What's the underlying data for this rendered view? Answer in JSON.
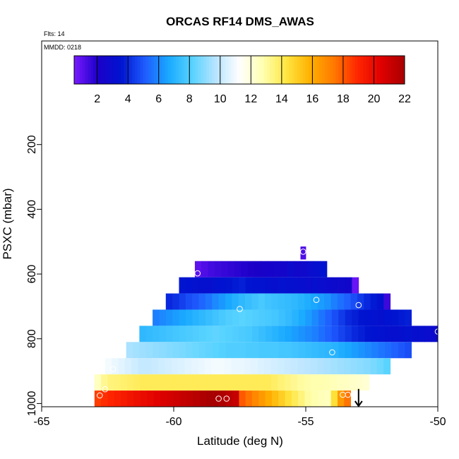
{
  "chart_data": {
    "type": "heatmap",
    "title": "ORCAS RF14 DMS_AWAS",
    "subtitle_flts": "Flts: 14",
    "subtitle_mmdd": "MMDD: 0218",
    "xlabel": "Latitude (deg N)",
    "ylabel": "PSXC (mbar)",
    "xlim": [
      -65,
      -50
    ],
    "ylim": [
      1010,
      -120
    ],
    "x_ticks": [
      {
        "value": -65,
        "label": "-65"
      },
      {
        "value": -60,
        "label": "-60"
      },
      {
        "value": -55,
        "label": "-55"
      },
      {
        "value": -50,
        "label": "-50"
      }
    ],
    "y_ticks": [
      {
        "value": 200,
        "label": "200"
      },
      {
        "value": 400,
        "label": "400"
      },
      {
        "value": 600,
        "label": "600"
      },
      {
        "value": 800,
        "label": "800"
      },
      {
        "value": 1000,
        "label": "1000"
      }
    ],
    "colorbar": {
      "min": 0.5,
      "max": 22,
      "ticks": [
        {
          "value": 2,
          "label": "2"
        },
        {
          "value": 4,
          "label": "4"
        },
        {
          "value": 6,
          "label": "6"
        },
        {
          "value": 8,
          "label": "8"
        },
        {
          "value": 10,
          "label": "10"
        },
        {
          "value": 12,
          "label": "12"
        },
        {
          "value": 14,
          "label": "14"
        },
        {
          "value": 16,
          "label": "16"
        },
        {
          "value": 18,
          "label": "18"
        },
        {
          "value": 20,
          "label": "20"
        },
        {
          "value": 22,
          "label": "22"
        }
      ],
      "palette": [
        "#7a1aff",
        "#1b00c8",
        "#0014d0",
        "#1f5cff",
        "#19a9ff",
        "#58d3ff",
        "#b8e4ff",
        "#ffffff",
        "#ffffb0",
        "#ffe640",
        "#ffb000",
        "#ff7a00",
        "#ff2600",
        "#e00000",
        "#a80000"
      ]
    },
    "bands": [
      {
        "p_top": 515,
        "p_bot": 555,
        "lat_start": -55.2,
        "lat_end": -55.0,
        "values": [
          1.2
        ]
      },
      {
        "p_top": 560,
        "p_bot": 610,
        "lat_start": -59.2,
        "lat_end": -54.2,
        "values": [
          1.0,
          1.2,
          1.4,
          1.5,
          1.6,
          1.7,
          1.8,
          1.9,
          2.0,
          2.1,
          2.2,
          2.3,
          2.4,
          2.5,
          2.8,
          2.6,
          2.7,
          3.0,
          3.2,
          3.5
        ]
      },
      {
        "p_top": 610,
        "p_bot": 660,
        "lat_start": -59.8,
        "lat_end": -53.0,
        "values": [
          3.6,
          3.5,
          3.4,
          3.3,
          3.2,
          3.4,
          3.5,
          3.6,
          3.7,
          3.8,
          3.6,
          3.5,
          3.4,
          3.3,
          3.2,
          3.4,
          3.3,
          3.2,
          3.1,
          3.0,
          3.2,
          3.0,
          2.9,
          2.8,
          2.7,
          2.6,
          0.8
        ]
      },
      {
        "p_top": 660,
        "p_bot": 710,
        "lat_start": -60.3,
        "lat_end": -51.8,
        "values": [
          4.0,
          4.2,
          4.5,
          4.8,
          5.0,
          5.3,
          5.6,
          6.0,
          6.3,
          6.6,
          6.9,
          7.2,
          7.4,
          7.6,
          7.8,
          7.6,
          7.5,
          7.4,
          7.3,
          7.2,
          7.0,
          6.8,
          6.6,
          6.4,
          6.2,
          5.8,
          5.5,
          5.2,
          4.8,
          4.4,
          4.0,
          3.7,
          3.4,
          1.5
        ]
      },
      {
        "p_top": 710,
        "p_bot": 760,
        "lat_start": -60.8,
        "lat_end": -51.0,
        "values": [
          5.8,
          6.0,
          6.2,
          6.4,
          6.6,
          6.8,
          7.0,
          7.2,
          7.4,
          7.6,
          7.8,
          8.0,
          8.1,
          8.2,
          8.1,
          8.0,
          7.9,
          7.8,
          7.7,
          7.5,
          7.3,
          7.0,
          6.7,
          6.4,
          6.0,
          5.6,
          5.2,
          4.8,
          4.4,
          4.0,
          3.8,
          3.6,
          3.5,
          3.4,
          3.3,
          3.5,
          3.6,
          3.7,
          3.8
        ]
      },
      {
        "p_top": 760,
        "p_bot": 810,
        "lat_start": -61.3,
        "lat_end": -50.0,
        "values": [
          7.2,
          7.3,
          7.4,
          7.5,
          7.6,
          7.7,
          7.8,
          7.9,
          8.0,
          8.1,
          8.2,
          8.3,
          8.2,
          8.1,
          8.0,
          7.9,
          7.8,
          7.6,
          7.4,
          7.2,
          7.0,
          6.8,
          6.6,
          6.4,
          6.2,
          6.0,
          5.8,
          5.5,
          5.2,
          4.9,
          4.6,
          4.3,
          4.0,
          3.8,
          3.6,
          3.5,
          3.4,
          3.3,
          3.2,
          3.3,
          3.4,
          3.2,
          3.1,
          3.0,
          2.9
        ]
      },
      {
        "p_top": 810,
        "p_bot": 860,
        "lat_start": -61.8,
        "lat_end": -51.0,
        "values": [
          9.5,
          9.4,
          9.3,
          9.2,
          9.1,
          9.0,
          8.9,
          8.8,
          8.7,
          8.6,
          8.5,
          8.4,
          8.3,
          8.2,
          8.1,
          8.0,
          8.0,
          8.0,
          7.9,
          7.9,
          7.8,
          7.8,
          7.8,
          7.7,
          7.7,
          7.6,
          7.5,
          7.4,
          7.3,
          7.2,
          7.1,
          7.0,
          6.8,
          6.6,
          6.4,
          6.2,
          6.0,
          5.8,
          5.6,
          5.4,
          5.2,
          5.0,
          4.8
        ]
      },
      {
        "p_top": 860,
        "p_bot": 910,
        "lat_start": -62.6,
        "lat_end": -51.8,
        "values": [
          11.0,
          10.8,
          10.6,
          10.4,
          10.2,
          10.0,
          10.0,
          10.1,
          10.2,
          10.3,
          10.4,
          10.5,
          10.6,
          10.7,
          10.8,
          10.9,
          11.0,
          11.0,
          10.9,
          10.8,
          10.8,
          10.7,
          10.6,
          10.5,
          10.4,
          10.3,
          10.2,
          10.1,
          10.0,
          9.9,
          9.8,
          9.7,
          9.6,
          9.5,
          9.4,
          9.3,
          9.2,
          9.1,
          9.0,
          8.9,
          8.7,
          8.5,
          8.2
        ]
      },
      {
        "p_top": 910,
        "p_bot": 960,
        "lat_start": -63.0,
        "lat_end": -52.6,
        "values": [
          12.5,
          13.2,
          13.5,
          13.6,
          13.7,
          13.8,
          13.9,
          14.0,
          14.0,
          14.0,
          14.0,
          14.0,
          14.0,
          14.0,
          14.0,
          14.0,
          14.0,
          14.0,
          14.0,
          14.0,
          14.0,
          14.0,
          14.0,
          14.0,
          14.0,
          14.0,
          14.0,
          13.8,
          13.6,
          13.4,
          13.2,
          13.0,
          12.9,
          12.8,
          12.8,
          12.7,
          12.6,
          12.5,
          12.4,
          12.3,
          12.2,
          12.1
        ]
      },
      {
        "p_top": 960,
        "p_bot": 1010,
        "lat_start": -63.0,
        "lat_end": -53.3,
        "values": [
          18.5,
          18.8,
          19.0,
          19.2,
          19.4,
          19.6,
          19.8,
          20.0,
          20.2,
          20.4,
          20.6,
          20.8,
          21.0,
          21.2,
          21.4,
          21.6,
          21.8,
          22.0,
          22.0,
          21.8,
          21.5,
          21.2,
          18.0,
          17.5,
          17.0,
          16.5,
          16.0,
          15.5,
          15.0,
          14.5,
          14.0,
          13.5,
          13.0,
          12.8,
          12.6,
          12.5,
          14.5,
          16.5,
          17.5
        ]
      }
    ],
    "samples": [
      {
        "lat": -55.1,
        "p": 531
      },
      {
        "lat": -59.1,
        "p": 598
      },
      {
        "lat": -54.6,
        "p": 680
      },
      {
        "lat": -53.0,
        "p": 696
      },
      {
        "lat": -57.5,
        "p": 708
      },
      {
        "lat": -50.0,
        "p": 778
      },
      {
        "lat": -54.0,
        "p": 842
      },
      {
        "lat": -62.3,
        "p": 894
      },
      {
        "lat": -62.6,
        "p": 956
      },
      {
        "lat": -62.8,
        "p": 975
      },
      {
        "lat": -53.6,
        "p": 973
      },
      {
        "lat": -53.4,
        "p": 973
      },
      {
        "lat": -58.3,
        "p": 985
      },
      {
        "lat": -58.0,
        "p": 985
      }
    ],
    "arrow": {
      "lat": -53.0,
      "p_start": 955,
      "p_end": 1010
    }
  }
}
